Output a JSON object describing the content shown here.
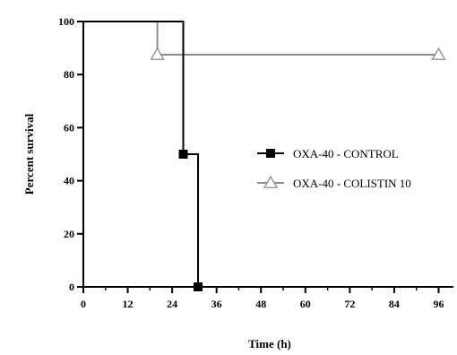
{
  "chart_data": {
    "type": "line",
    "subtype": "kaplan-meier-step",
    "title": "",
    "xlabel": "Time (h)",
    "ylabel": "Percent survival",
    "xlim": [
      0,
      100
    ],
    "ylim": [
      0,
      100
    ],
    "xticks": [
      0,
      12,
      24,
      36,
      48,
      60,
      72,
      84,
      96
    ],
    "yticks": [
      0,
      20,
      40,
      60,
      80,
      100
    ],
    "legend_position": "right-middle",
    "grid": false,
    "series": [
      {
        "name": "OXA-40 - CONTROL",
        "color": "#000000",
        "marker": "filled-square",
        "steps": [
          {
            "x": 0,
            "y": 100
          },
          {
            "x": 27,
            "y": 50
          },
          {
            "x": 31,
            "y": 0
          }
        ],
        "markers": [
          {
            "x": 27,
            "y": 50
          },
          {
            "x": 31,
            "y": 0
          }
        ]
      },
      {
        "name": "OXA-40 - COLISTIN 10",
        "color": "#8c8c8c",
        "marker": "open-triangle",
        "steps": [
          {
            "x": 0,
            "y": 100
          },
          {
            "x": 20,
            "y": 87.5
          },
          {
            "x": 96,
            "y": 87.5
          }
        ],
        "markers": [
          {
            "x": 20,
            "y": 87.5
          },
          {
            "x": 96,
            "y": 87.5
          }
        ]
      }
    ]
  }
}
